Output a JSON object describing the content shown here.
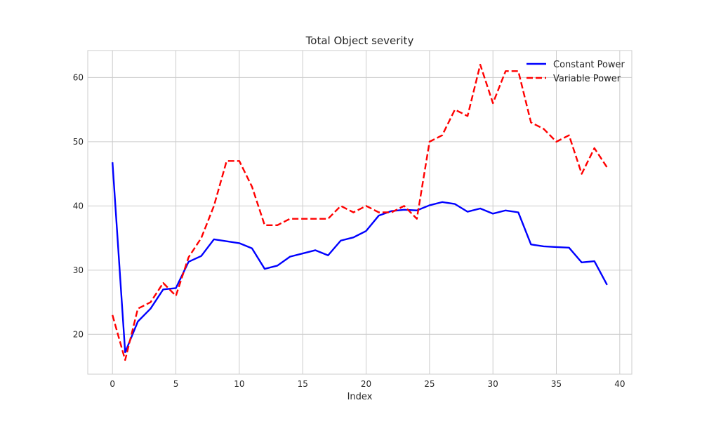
{
  "chart_data": {
    "type": "line",
    "title": "Total Object severity",
    "xlabel": "Index",
    "ylabel": "",
    "xlim": [
      -1.95,
      40.95
    ],
    "ylim": [
      13.8,
      64.2
    ],
    "xticks": [
      0,
      5,
      10,
      15,
      20,
      25,
      30,
      35,
      40
    ],
    "yticks": [
      20,
      30,
      40,
      50,
      60
    ],
    "grid": true,
    "legend_position": "top-right",
    "x": [
      0,
      1,
      2,
      3,
      4,
      5,
      6,
      7,
      8,
      9,
      10,
      11,
      12,
      13,
      14,
      15,
      16,
      17,
      18,
      19,
      20,
      21,
      22,
      23,
      24,
      25,
      26,
      27,
      28,
      29,
      30,
      31,
      32,
      33,
      34,
      35,
      36,
      37,
      38,
      39
    ],
    "series": [
      {
        "name": "Constant Power",
        "color": "#0000ff",
        "line_style": "solid",
        "values": [
          46.8,
          17.2,
          22.0,
          24.0,
          27.0,
          27.2,
          31.3,
          32.2,
          34.8,
          34.5,
          34.2,
          33.4,
          30.2,
          30.7,
          32.1,
          32.6,
          33.1,
          32.3,
          34.6,
          35.1,
          36.1,
          38.5,
          39.2,
          39.4,
          39.3,
          40.1,
          40.6,
          40.3,
          39.1,
          39.6,
          38.8,
          39.3,
          39.0,
          34.0,
          33.7,
          33.6,
          33.5,
          31.2,
          31.4,
          27.7
        ]
      },
      {
        "name": "Variable Power",
        "color": "#ff0000",
        "line_style": "dashed",
        "values": [
          23,
          16,
          24,
          25,
          28,
          26,
          32,
          35,
          40,
          47,
          47,
          43,
          37,
          37,
          38,
          38,
          38,
          38,
          40,
          39,
          40,
          39,
          39,
          40,
          38,
          50,
          51,
          55,
          54,
          62,
          56,
          61,
          61,
          53,
          52,
          50,
          51,
          45,
          49,
          46
        ]
      }
    ]
  }
}
